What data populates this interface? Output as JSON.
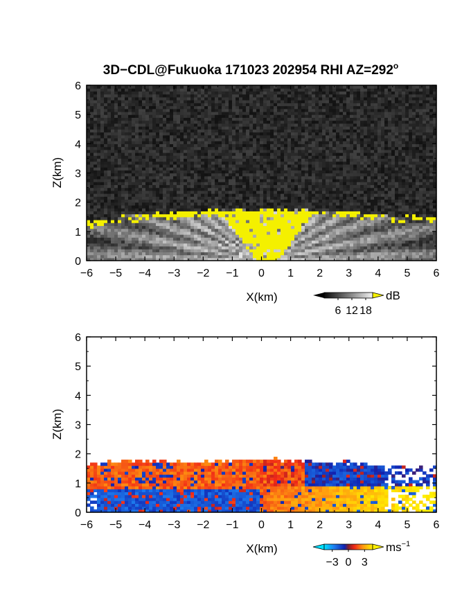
{
  "title": "3D−CDL@Fukuoka 171023 202954 RHI AZ=292",
  "title_sup": "o",
  "chart_data": [
    {
      "type": "heatmap",
      "quantity": "intensity (SNR)",
      "xlabel": "X(km)",
      "ylabel": "Z(km)",
      "xlim": [
        -6,
        6
      ],
      "ylim": [
        0,
        6
      ],
      "xticks": [
        -6,
        -5,
        -4,
        -3,
        -2,
        -1,
        0,
        1,
        2,
        3,
        4,
        5,
        6
      ],
      "xtick_labels": [
        "−6",
        "−5",
        "−4",
        "−3",
        "−2",
        "−1",
        "0",
        "1",
        "2",
        "3",
        "4",
        "5",
        "6"
      ],
      "yticks": [
        0,
        1,
        2,
        3,
        4,
        5,
        6
      ],
      "ytick_labels": [
        "0",
        "1",
        "2",
        "3",
        "4",
        "5",
        "6"
      ],
      "colorbar": {
        "unit": "dB",
        "ticks": [
          6,
          12,
          18
        ],
        "tick_labels": [
          "6",
          "12",
          "18"
        ],
        "range": [
          0,
          21
        ],
        "colormap": "grayscale, yellow above max"
      },
      "field": {
        "background": "noise (dark gray)",
        "boundary_layer_top_km": [
          [
            -6,
            1.35
          ],
          [
            -5,
            1.5
          ],
          [
            -4,
            1.62
          ],
          [
            -3,
            1.65
          ],
          [
            -2,
            1.7
          ],
          [
            -1,
            1.75
          ],
          [
            0,
            1.8
          ],
          [
            1,
            1.75
          ],
          [
            2,
            1.7
          ],
          [
            3,
            1.68
          ],
          [
            4,
            1.62
          ],
          [
            5,
            1.5
          ],
          [
            5.7,
            1.6
          ],
          [
            6,
            1.4
          ]
        ],
        "saturated_region": "yellow fan above lidar (x≈−1 to 1.5 km) and thin band along layer top"
      }
    },
    {
      "type": "heatmap",
      "quantity": "Doppler velocity",
      "xlabel": "X(km)",
      "ylabel": "Z(km)",
      "xlim": [
        -6,
        6
      ],
      "ylim": [
        0,
        6
      ],
      "xticks": [
        -6,
        -5,
        -4,
        -3,
        -2,
        -1,
        0,
        1,
        2,
        3,
        4,
        5,
        6
      ],
      "xtick_labels": [
        "−6",
        "−5",
        "−4",
        "−3",
        "−2",
        "−1",
        "0",
        "1",
        "2",
        "3",
        "4",
        "5",
        "6"
      ],
      "yticks": [
        0,
        1,
        2,
        3,
        4,
        5,
        6
      ],
      "ytick_labels": [
        "0",
        "1",
        "2",
        "3",
        "4",
        "5",
        "6"
      ],
      "colorbar": {
        "unit": "ms",
        "unit_sup": "−1",
        "ticks": [
          -3,
          0,
          3
        ],
        "tick_labels": [
          "−3",
          "0",
          "3"
        ],
        "range": [
          -4.5,
          4.5
        ],
        "colormap": "cyan-blue-red-yellow"
      },
      "field": {
        "echo_top_km": [
          [
            -6,
            1.6
          ],
          [
            -5,
            1.75
          ],
          [
            -4,
            1.75
          ],
          [
            -3,
            1.7
          ],
          [
            -2,
            1.72
          ],
          [
            -1,
            1.78
          ],
          [
            0,
            1.8
          ],
          [
            1,
            1.78
          ],
          [
            2,
            1.7
          ],
          [
            3,
            1.7
          ],
          [
            4,
            1.6
          ],
          [
            5,
            1.5
          ],
          [
            6,
            1.55
          ]
        ],
        "negative_velocity": "blue band lower layer x<0 and upper layer x>1",
        "positive_velocity": "red upper layer x<0, yellow/orange lower layer x>0"
      }
    }
  ]
}
